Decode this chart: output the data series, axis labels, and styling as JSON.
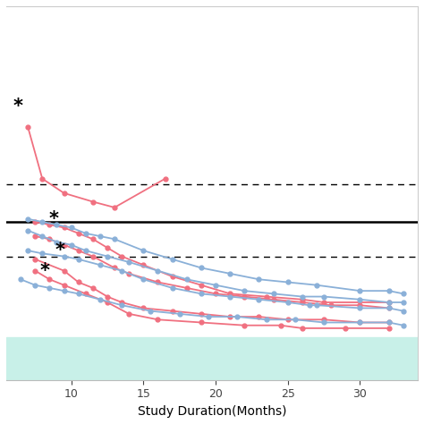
{
  "xlabel": "Study Duration(Months)",
  "xlim": [
    5.5,
    34
  ],
  "ylim": [
    0,
    13
  ],
  "hline_solid": 5.5,
  "hline_dashed_upper": 6.8,
  "hline_dashed_lower": 4.3,
  "bottom_band_ymin": 0,
  "bottom_band_ymax": 1.5,
  "bottom_band_color": "#c8f0e8",
  "pink_color": "#f07080",
  "blue_color": "#8ab0d8",
  "xticks": [
    10,
    15,
    20,
    25,
    30
  ],
  "series": [
    {
      "color": "pink",
      "x": [
        7.0,
        8.0,
        9.5,
        11.5,
        13.0,
        16.5
      ],
      "y": [
        8.8,
        7.0,
        6.5,
        6.2,
        6.0,
        7.0
      ],
      "star_x": 6.3,
      "star_y": 9.5
    },
    {
      "color": "pink",
      "x": [
        7.5,
        8.5,
        9.5,
        10.5,
        11.5,
        12.5,
        13.5,
        15.0,
        17.0,
        19.0,
        21.0,
        23.5,
        26.0,
        27.5,
        32.0
      ],
      "y": [
        5.5,
        5.4,
        5.3,
        5.1,
        4.9,
        4.6,
        4.3,
        4.0,
        3.6,
        3.3,
        3.0,
        2.9,
        2.8,
        2.7,
        2.7
      ],
      "star_x": null,
      "star_y": null
    },
    {
      "color": "pink",
      "x": [
        7.5,
        8.5,
        9.5,
        10.5,
        11.5,
        13.0,
        14.0,
        16.0,
        18.0,
        20.0,
        22.0,
        24.0,
        26.0,
        28.0,
        30.0,
        32.0
      ],
      "y": [
        5.0,
        4.9,
        4.7,
        4.5,
        4.3,
        3.9,
        3.7,
        3.4,
        3.2,
        3.0,
        2.9,
        2.8,
        2.7,
        2.6,
        2.6,
        2.5
      ],
      "star_x": null,
      "star_y": null
    },
    {
      "color": "pink",
      "x": [
        7.5,
        9.5,
        10.5,
        11.5,
        12.5,
        13.5,
        15.0,
        17.0,
        19.0,
        21.0,
        23.0,
        25.0,
        27.5,
        30.0,
        32.0
      ],
      "y": [
        4.2,
        3.8,
        3.4,
        3.2,
        2.9,
        2.7,
        2.5,
        2.4,
        2.3,
        2.2,
        2.2,
        2.1,
        2.1,
        2.0,
        2.0
      ],
      "star_x": null,
      "star_y": null
    },
    {
      "color": "blue",
      "x": [
        7.0,
        8.0,
        9.0,
        10.0,
        11.0,
        12.0,
        13.0,
        15.0,
        17.0,
        19.0,
        21.0,
        23.0,
        25.0,
        27.0,
        30.0,
        32.0,
        33.0
      ],
      "y": [
        5.6,
        5.5,
        5.4,
        5.3,
        5.1,
        5.0,
        4.9,
        4.5,
        4.2,
        3.9,
        3.7,
        3.5,
        3.4,
        3.3,
        3.1,
        3.1,
        3.0
      ],
      "star_x": 8.8,
      "star_y": 5.6
    },
    {
      "color": "blue",
      "x": [
        7.0,
        8.0,
        9.0,
        10.0,
        11.0,
        12.5,
        14.0,
        16.0,
        18.0,
        20.0,
        22.0,
        24.0,
        26.0,
        27.5,
        30.0,
        32.0,
        33.0
      ],
      "y": [
        5.2,
        5.0,
        4.8,
        4.7,
        4.5,
        4.3,
        4.1,
        3.8,
        3.5,
        3.3,
        3.1,
        3.0,
        2.9,
        2.9,
        2.8,
        2.7,
        2.7
      ],
      "star_x": null,
      "star_y": null
    },
    {
      "color": "blue",
      "x": [
        7.0,
        8.0,
        9.5,
        10.5,
        12.0,
        13.5,
        15.0,
        17.0,
        19.0,
        21.0,
        23.0,
        25.0,
        26.5,
        27.0,
        30.0,
        32.0,
        33.0
      ],
      "y": [
        4.5,
        4.4,
        4.3,
        4.2,
        4.0,
        3.8,
        3.5,
        3.2,
        3.0,
        2.9,
        2.8,
        2.7,
        2.6,
        2.6,
        2.5,
        2.5,
        2.4
      ],
      "star_x": 9.2,
      "star_y": 4.5
    },
    {
      "color": "pink",
      "x": [
        7.5,
        8.5,
        9.5,
        11.0,
        12.5,
        14.0,
        16.0,
        19.0,
        22.0,
        24.5,
        26.0,
        29.0,
        32.0
      ],
      "y": [
        3.8,
        3.5,
        3.3,
        3.0,
        2.7,
        2.3,
        2.1,
        2.0,
        1.9,
        1.9,
        1.8,
        1.8,
        1.8
      ],
      "star_x": 8.2,
      "star_y": 3.8
    },
    {
      "color": "blue",
      "x": [
        6.5,
        7.5,
        8.5,
        9.5,
        10.5,
        12.0,
        13.5,
        15.5,
        17.5,
        19.5,
        21.5,
        23.5,
        25.5,
        27.5,
        30.0,
        32.0,
        33.0
      ],
      "y": [
        3.5,
        3.3,
        3.2,
        3.1,
        3.0,
        2.8,
        2.6,
        2.4,
        2.3,
        2.2,
        2.2,
        2.1,
        2.1,
        2.0,
        2.0,
        2.0,
        1.9
      ],
      "star_x": null,
      "star_y": null
    }
  ]
}
